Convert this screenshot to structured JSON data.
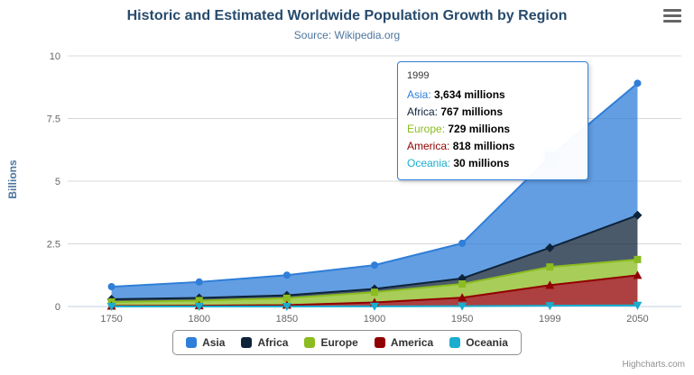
{
  "chart_data": {
    "type": "area",
    "stacking": "normal",
    "title": "Historic and Estimated Worldwide Population Growth by Region",
    "subtitle": "Source: Wikipedia.org",
    "ylabel": "Billions",
    "unit": "millions",
    "ylim_billions": [
      0,
      10
    ],
    "yticks": [
      0,
      2.5,
      5,
      7.5,
      10
    ],
    "grid": true,
    "legend_position": "bottom-center",
    "categories": [
      "1750",
      "1800",
      "1850",
      "1900",
      "1950",
      "1999",
      "2050"
    ],
    "series": [
      {
        "name": "Asia",
        "color": "#2f7ed8",
        "symbol": "circle",
        "values": [
          502,
          635,
          809,
          947,
          1402,
          3634,
          5268
        ]
      },
      {
        "name": "Africa",
        "color": "#0d233a",
        "symbol": "diamond",
        "values": [
          106,
          107,
          111,
          133,
          221,
          767,
          1766
        ]
      },
      {
        "name": "Europe",
        "color": "#8bbc21",
        "symbol": "square",
        "values": [
          163,
          203,
          276,
          408,
          547,
          729,
          628
        ]
      },
      {
        "name": "America",
        "color": "#910000",
        "symbol": "triangle",
        "values": [
          18,
          31,
          54,
          156,
          339,
          818,
          1201
        ]
      },
      {
        "name": "Oceania",
        "color": "#1aadce",
        "symbol": "triangle-down",
        "values": [
          2,
          2,
          2,
          6,
          13,
          30,
          46
        ]
      }
    ]
  },
  "tooltip": {
    "header": "1999",
    "hover_series": "Asia",
    "hover_index": 5,
    "rows": [
      {
        "name": "Asia",
        "value": "3,634",
        "suffix": "millions"
      },
      {
        "name": "Africa",
        "value": "767",
        "suffix": "millions"
      },
      {
        "name": "Europe",
        "value": "729",
        "suffix": "millions"
      },
      {
        "name": "America",
        "value": "818",
        "suffix": "millions"
      },
      {
        "name": "Oceania",
        "value": "30",
        "suffix": "millions"
      }
    ]
  },
  "credits": {
    "label": "Highcharts.com"
  }
}
